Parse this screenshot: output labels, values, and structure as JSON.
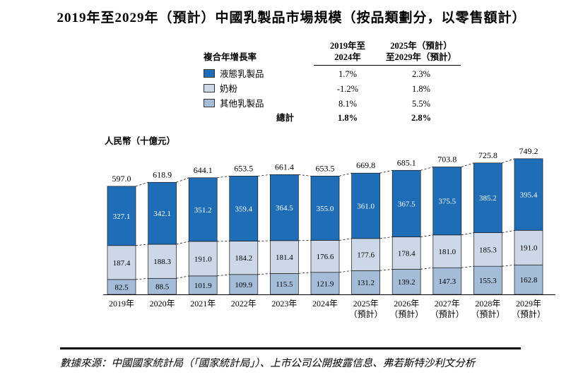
{
  "title": "2019年至2029年（預計）中國乳製品市場規模（按品類劃分，以零售額計）",
  "cagr_table": {
    "title": "複合年增長率",
    "columns": [
      "2019年至\n2024年",
      "2025年（預計）\n至2029年（預計）"
    ],
    "rows": [
      {
        "label": "液態乳製品",
        "cagr_2019_2024": "1.7%",
        "cagr_2025_2029": "2.3%"
      },
      {
        "label": "奶粉",
        "cagr_2019_2024": "-1.2%",
        "cagr_2025_2029": "1.8%"
      },
      {
        "label": "其他乳製品",
        "cagr_2019_2024": "8.1%",
        "cagr_2025_2029": "5.5%"
      }
    ],
    "total_row": {
      "label": "總計",
      "cagr_2019_2024": "1.8%",
      "cagr_2025_2029": "2.8%"
    }
  },
  "y_axis_label": "人民幣（十億元）",
  "chart_data": {
    "type": "bar",
    "stacked": true,
    "stack_note": "first series renders as the top segment of each bar",
    "title": "2019年至2029年（預計）中國乳製品市場規模（按品類劃分，以零售額計）",
    "ylabel": "人民幣（十億元）",
    "ylim": [
      0,
      800
    ],
    "grid": false,
    "legend_position": "top",
    "categories": [
      "2019年",
      "2020年",
      "2021年",
      "2022年",
      "2023年",
      "2024年",
      "2025年\n（預計）",
      "2026年\n（預計）",
      "2027年\n（預計）",
      "2028年\n（預計）",
      "2029年\n（預計）"
    ],
    "series": [
      {
        "name": "液態乳製品",
        "color": "#1f6db6",
        "label_color": "#ffffff",
        "values": [
          327.1,
          342.1,
          351.2,
          359.4,
          364.5,
          355.0,
          361.0,
          367.5,
          375.5,
          385.2,
          395.4
        ]
      },
      {
        "name": "奶粉",
        "color": "#ccd8e8",
        "label_color": "#000000",
        "values": [
          187.4,
          188.3,
          191.0,
          184.2,
          181.4,
          176.6,
          177.6,
          178.4,
          181.0,
          185.3,
          191.0
        ]
      },
      {
        "name": "其他乳製品",
        "color": "#a4bcd8",
        "label_color": "#000000",
        "values": [
          82.5,
          88.5,
          101.9,
          109.9,
          115.5,
          121.9,
          131.2,
          139.2,
          147.3,
          155.3,
          162.8
        ]
      }
    ],
    "totals": [
      597.0,
      618.9,
      644.1,
      653.5,
      661.4,
      653.5,
      669.8,
      685.1,
      703.8,
      725.8,
      749.2
    ]
  },
  "source_note": "數據來源：中國國家統計局（「國家統計局」）、上市公司公開披露信息、弗若斯特沙利文分析"
}
